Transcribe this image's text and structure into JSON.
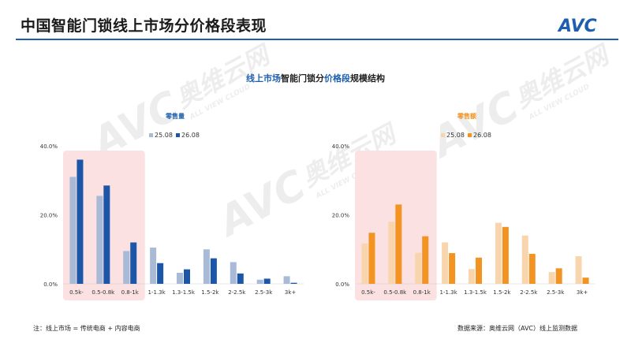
{
  "page": {
    "title": "中国智能门锁线上市场分价格段表现",
    "subtitle_parts": [
      "线上市场",
      "智能门锁分",
      "价格段",
      "规模结构"
    ],
    "footnote": "注：线上市场 = 传统电商 + 内容电商",
    "source": "数据来源：奥维云网（AVC）线上监测数据",
    "logo_text": "AVC",
    "watermark": {
      "brand": "AVC",
      "cn": "奥维云网",
      "en": "ALL VIEW CLOUD"
    }
  },
  "colors": {
    "brand": "#1d5fae",
    "blue_light": "#a9bad6",
    "blue_dark": "#1c56a8",
    "orange_light": "#f8d5ad",
    "orange_dark": "#f39322",
    "highlight": "#fbe1e1"
  },
  "chart_data": [
    {
      "type": "bar",
      "title": "零售量",
      "categories": [
        "0.5k-",
        "0.5-0.8k",
        "0.8-1k",
        "1-1.3k",
        "1.3-1.5k",
        "1.5-2k",
        "2-2.5k",
        "2.5-3k",
        "3k+"
      ],
      "series": [
        {
          "name": "25.08",
          "values": [
            31,
            25.5,
            9.5,
            10.5,
            3.2,
            10,
            6.3,
            1.2,
            2.2
          ]
        },
        {
          "name": "26.08",
          "values": [
            36,
            28.5,
            12,
            6,
            4.2,
            7.4,
            3,
            1.5,
            0.3
          ]
        }
      ],
      "yticks": [
        "0.0%",
        "20.0%",
        "40.0%"
      ],
      "ylim": [
        0,
        40
      ],
      "highlight_categories": [
        "0.5k-",
        "0.5-0.8k",
        "0.8-1k"
      ],
      "legend_position": "top"
    },
    {
      "type": "bar",
      "title": "零售额",
      "categories": [
        "0.5k-",
        "0.5-0.8k",
        "0.8-1k",
        "1-1.3k",
        "1.3-1.5k",
        "1.5-2k",
        "2-2.5k",
        "2.5-3k",
        "3k+"
      ],
      "series": [
        {
          "name": "25.08",
          "values": [
            11.7,
            18,
            9,
            12,
            4.3,
            17.7,
            14,
            3.4,
            8
          ]
        },
        {
          "name": "26.08",
          "values": [
            14.8,
            23,
            13.8,
            8.9,
            7.6,
            16.5,
            8.7,
            4.5,
            1.8
          ]
        }
      ],
      "yticks": [
        "0.0%",
        "20.0%",
        "40.0%"
      ],
      "ylim": [
        0,
        40
      ],
      "highlight_categories": [
        "0.5k-",
        "0.5-0.8k",
        "0.8-1k"
      ],
      "legend_position": "top"
    }
  ]
}
